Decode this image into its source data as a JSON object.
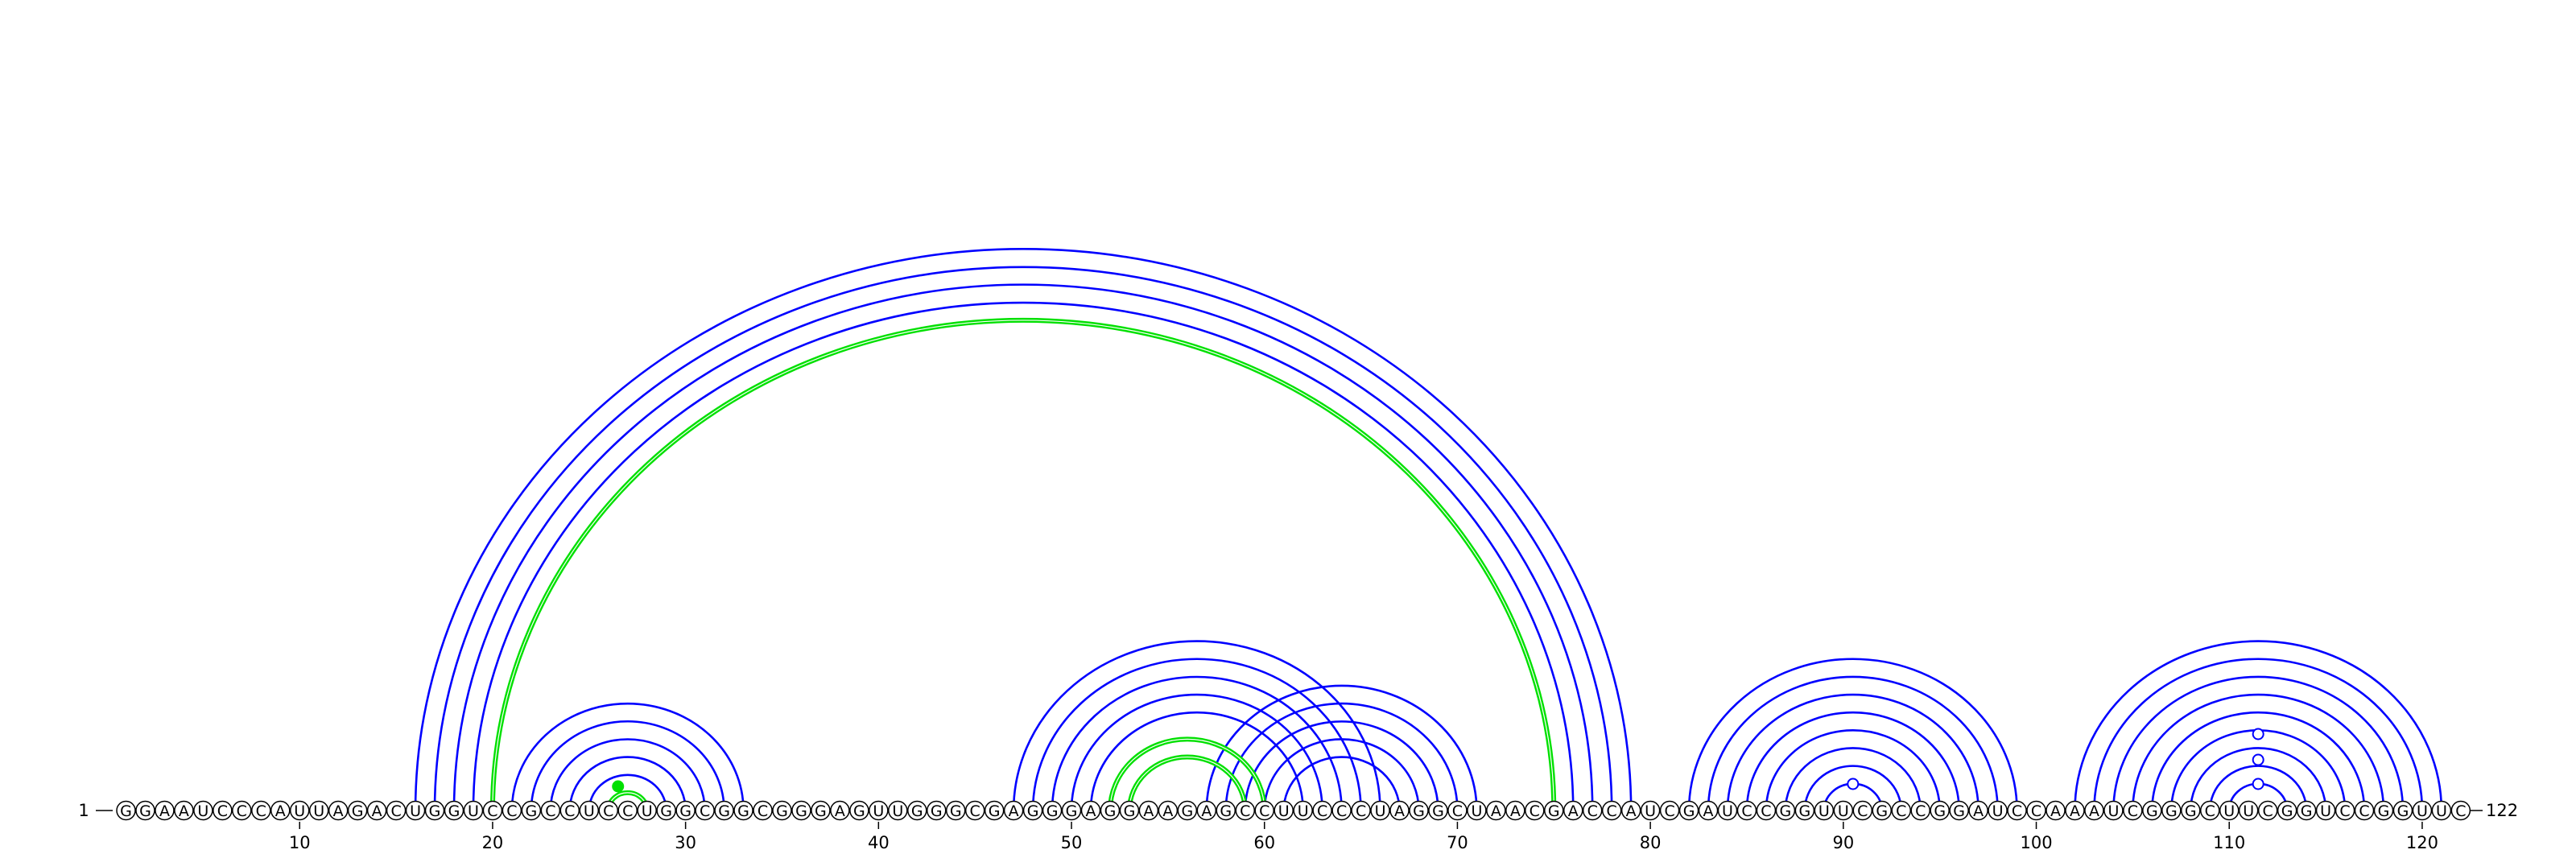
{
  "diagram": {
    "sequence": "GGAAUCCCAUUAGACUGGUCCGCCUCCUGGCGGCGGGAGUUGGGCGAGGGAGGAAGAGCCUUCCCUAGGCUAACGACCAUCGAUCCGGUUCGCCGGAUCCAAAUCGGGCUUCGGUCCGGUUC",
    "length": 122,
    "start_label": "1",
    "end_label": "122",
    "tick_labels": [
      "10",
      "20",
      "30",
      "40",
      "50",
      "60",
      "70",
      "80",
      "90",
      "100",
      "110",
      "120"
    ],
    "colors": {
      "blue": "#0000ff",
      "green": "#00e000",
      "nucleotide_stroke": "#000000"
    },
    "blue_pairs": [
      [
        16,
        79
      ],
      [
        17,
        78
      ],
      [
        18,
        77
      ],
      [
        19,
        76
      ],
      [
        21,
        33
      ],
      [
        22,
        32
      ],
      [
        23,
        31
      ],
      [
        24,
        30
      ],
      [
        25,
        29
      ],
      [
        47,
        66
      ],
      [
        48,
        65
      ],
      [
        49,
        64
      ],
      [
        50,
        63
      ],
      [
        51,
        62
      ],
      [
        57,
        71
      ],
      [
        58,
        70
      ],
      [
        59,
        69
      ],
      [
        60,
        68
      ],
      [
        61,
        67
      ],
      [
        82,
        99
      ],
      [
        83,
        98
      ],
      [
        84,
        97
      ],
      [
        85,
        96
      ],
      [
        86,
        95
      ],
      [
        87,
        94
      ],
      [
        88,
        93
      ],
      [
        89,
        92
      ],
      [
        102,
        121
      ],
      [
        103,
        120
      ],
      [
        104,
        119
      ],
      [
        105,
        118
      ],
      [
        106,
        117
      ],
      [
        107,
        116
      ],
      [
        108,
        115
      ],
      [
        109,
        114
      ],
      [
        110,
        113
      ]
    ],
    "green_pairs": [
      [
        20,
        75
      ],
      [
        26,
        28
      ],
      [
        52,
        60
      ],
      [
        53,
        59
      ]
    ],
    "loop_markers": [
      {
        "position": 90.5,
        "color": "#0000ff",
        "filled": false
      },
      {
        "position": 111.5,
        "color": "#0000ff",
        "filled": false
      },
      {
        "position": 111.5,
        "color": "#0000ff",
        "filled": false
      },
      {
        "position": 111.5,
        "color": "#0000ff",
        "filled": false
      },
      {
        "position": 26.5,
        "color": "#00e000",
        "filled": true
      }
    ]
  }
}
